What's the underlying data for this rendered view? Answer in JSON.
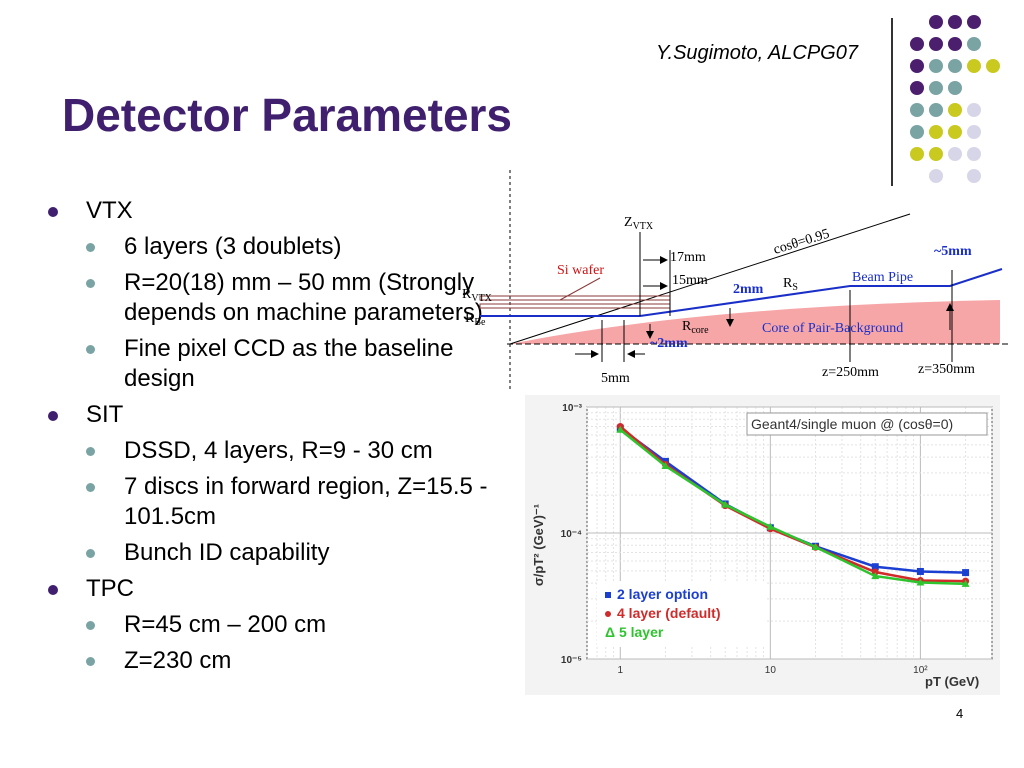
{
  "slide": {
    "author": "Y.Sugimoto, ALCPG07",
    "title": "Detector Parameters",
    "page_number": "4"
  },
  "bullets": [
    {
      "text": "VTX",
      "items": [
        {
          "text": "6 layers (3 doublets)"
        },
        {
          "text": "R=20(18) mm – 50 mm (Strongly depends on machine parameters)"
        },
        {
          "text": "Fine pixel CCD as the baseline design"
        }
      ]
    },
    {
      "text": "SIT",
      "items": [
        {
          "text": "DSSD, 4 layers, R=9 - 30 cm"
        },
        {
          "text": "7 discs in forward region, Z=15.5 - 101.5cm"
        },
        {
          "text": "Bunch ID capability"
        }
      ]
    },
    {
      "text": "TPC",
      "items": [
        {
          "text": "R=45 cm – 200 cm"
        },
        {
          "text": "Z=230 cm"
        }
      ]
    }
  ],
  "decoration": {
    "dot_colors": {
      "purple": "#4b1e6e",
      "teal": "#7aa3a4",
      "yellow": "#c9c920",
      "lavender": "#d6d6e8"
    }
  },
  "diagram": {
    "z_vtx": "Z",
    "z_vtx_sub": "VTX",
    "cos_label": "cosθ=0.95",
    "dim_17mm": "17mm",
    "dim_15mm": "15mm",
    "si_wafer": "Si wafer",
    "r_vtx": "R",
    "r_vtx_sub": "VTX",
    "r_be": "R",
    "r_be_sub": "Be",
    "dim_2mm": "2mm",
    "r_s": "R",
    "r_s_sub": "S",
    "beam_pipe": "Beam Pipe",
    "dim_5mm_gap": "~5mm",
    "r_core": "R",
    "r_core_sub": "core",
    "core_label": "Core of Pair-Background",
    "dim_2mm_core": "~2mm",
    "dim_5mm": "5mm",
    "z250": "z=250mm",
    "z350": "z=350mm"
  },
  "chart_data": {
    "type": "line",
    "title": "Geant4/single muon @ (cosθ=0)",
    "xlabel": "pT (GeV)",
    "ylabel": "σ/pT² (GeV)⁻¹",
    "xscale": "log",
    "yscale": "log",
    "xlim": [
      0.6,
      300
    ],
    "ylim": [
      1e-05,
      0.001
    ],
    "x_ticks": [
      "1",
      "10",
      "10²"
    ],
    "y_ticks": [
      "10⁻³",
      "10⁻⁴",
      "10⁻⁵"
    ],
    "legend": "bottom-left",
    "grid": true,
    "x": [
      1,
      2,
      5,
      10,
      20,
      50,
      100,
      200
    ],
    "series": [
      {
        "name": "2 layer option",
        "color": "#1a3fd1",
        "marker": "square",
        "values": [
          0.00068,
          0.00037,
          0.00017,
          0.00011,
          7.85e-05,
          5.4e-05,
          4.95e-05,
          4.85e-05
        ]
      },
      {
        "name": "4 layer (default)",
        "color": "#d12a2a",
        "marker": "circle",
        "values": [
          0.0007,
          0.00035,
          0.000165,
          0.000108,
          7.7e-05,
          4.9e-05,
          4.2e-05,
          4.15e-05
        ]
      },
      {
        "name": "Δ 5 layer",
        "color": "#2fc42f",
        "marker": "triangle",
        "values": [
          0.00066,
          0.00034,
          0.000168,
          0.000112,
          7.75e-05,
          4.55e-05,
          4.05e-05,
          3.95e-05
        ]
      }
    ]
  }
}
